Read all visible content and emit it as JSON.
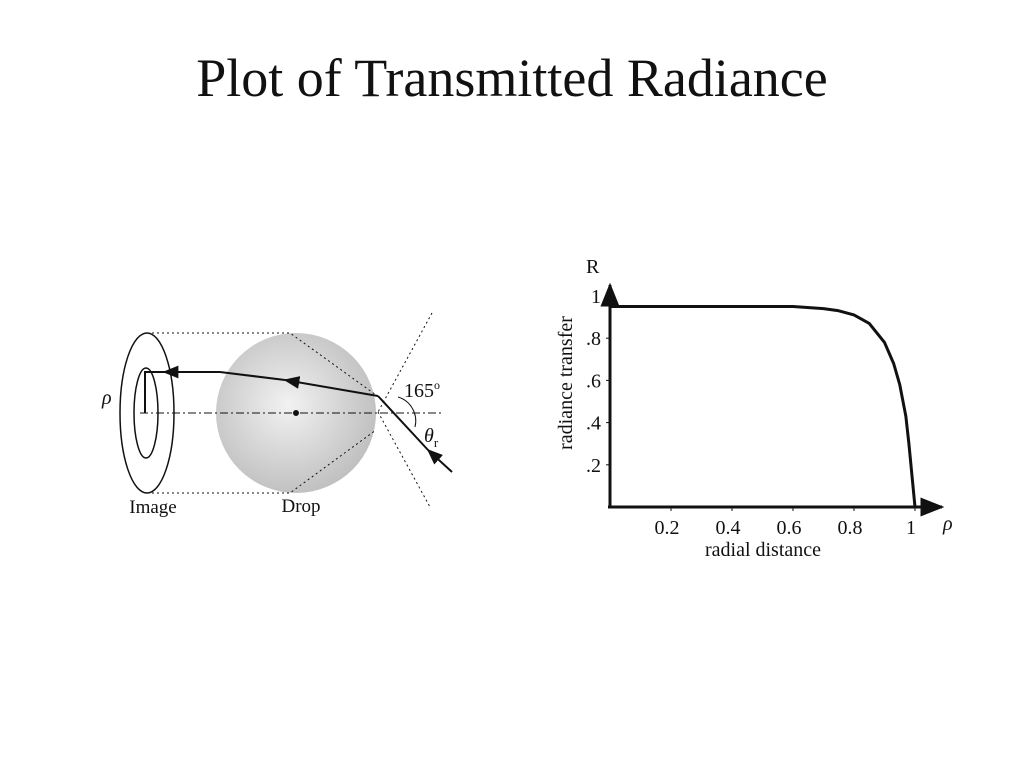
{
  "title": "Plot of Transmitted Radiance",
  "diagram": {
    "rho": "ρ",
    "angle": "165",
    "angle_sup": "o",
    "theta": "θ",
    "theta_sub": "r",
    "image_label": "Image",
    "drop_label": "Drop"
  },
  "chart_data": {
    "type": "line",
    "x_axis_name": "ρ",
    "y_axis_name": "R",
    "x_label": "radial distance",
    "y_label": "radiance transfer",
    "x": [
      0,
      0.2,
      0.4,
      0.6,
      0.7,
      0.75,
      0.8,
      0.85,
      0.9,
      0.93,
      0.95,
      0.97,
      0.98,
      0.99,
      1.0
    ],
    "values": [
      0.95,
      0.95,
      0.95,
      0.95,
      0.94,
      0.93,
      0.91,
      0.87,
      0.78,
      0.68,
      0.58,
      0.43,
      0.3,
      0.15,
      0
    ],
    "color": "#111111",
    "xlim": [
      0,
      1.1
    ],
    "ylim": [
      0,
      1.05
    ],
    "xticks": [
      0.2,
      0.4,
      0.6,
      0.8,
      1
    ],
    "yticks": [
      {
        "value": 0.2,
        "label": ".2"
      },
      {
        "value": 0.4,
        "label": ".4"
      },
      {
        "value": 0.6,
        "label": ".6"
      },
      {
        "value": 0.8,
        "label": ".8"
      },
      1
    ]
  }
}
